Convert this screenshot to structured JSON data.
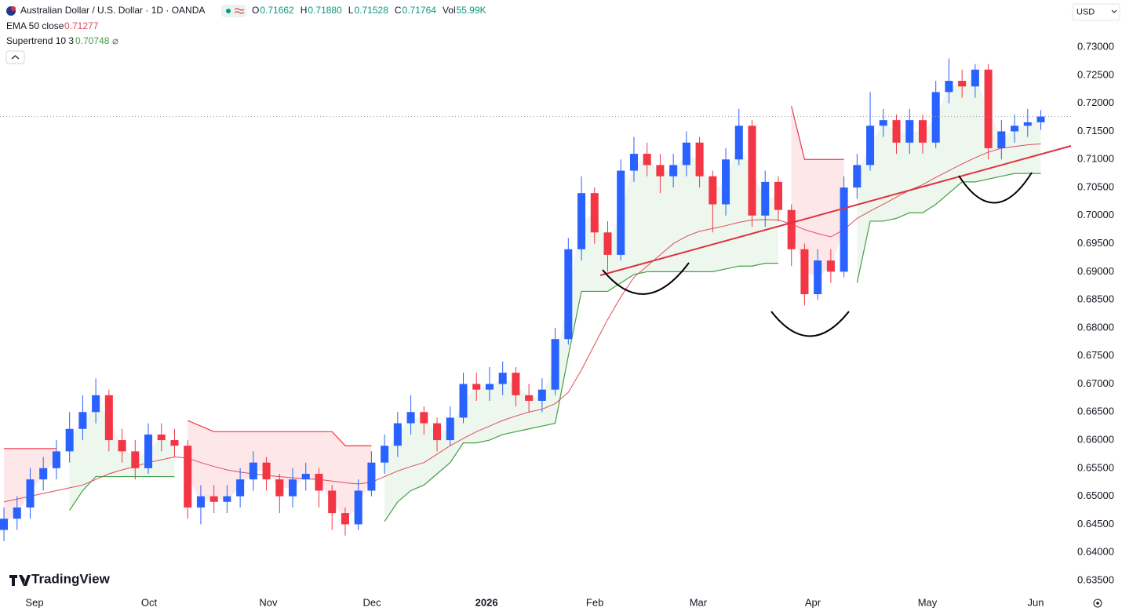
{
  "chart_data": {
    "type": "candlestick",
    "title": "Australian Dollar / U.S. Dollar · 1D · OANDA",
    "legend_values": [
      {
        "label": "O",
        "value": "0.71662"
      },
      {
        "label": "H",
        "value": "0.71880"
      },
      {
        "label": "L",
        "value": "0.71528"
      },
      {
        "label": "C",
        "value": "0.71764"
      },
      {
        "label": "Vol",
        "value": "55.99K"
      }
    ],
    "currency": "USD",
    "brand": "TradingView",
    "up_color": "#2962ff",
    "down_color": "#f23645",
    "open": [
      0.644,
      0.646,
      0.648,
      0.653,
      0.655,
      0.658,
      0.662,
      0.665,
      0.668,
      0.66,
      0.658,
      0.655,
      0.661,
      0.66,
      0.659,
      0.648,
      0.65,
      0.649,
      0.65,
      0.653,
      0.656,
      0.653,
      0.65,
      0.653,
      0.654,
      0.651,
      0.647,
      0.645,
      0.651,
      0.656,
      0.659,
      0.663,
      0.665,
      0.663,
      0.66,
      0.664,
      0.67,
      0.669,
      0.67,
      0.672,
      0.668,
      0.667,
      0.669,
      0.678,
      0.694,
      0.704,
      0.697,
      0.693,
      0.708,
      0.711,
      0.709,
      0.707,
      0.709,
      0.713,
      0.707,
      0.702,
      0.71,
      0.716,
      0.7,
      0.706,
      0.701,
      0.694,
      0.686,
      0.692,
      0.69,
      0.705,
      0.709,
      0.716,
      0.717,
      0.713,
      0.717,
      0.713,
      0.722,
      0.724,
      0.723,
      0.726,
      0.712,
      0.715,
      0.716,
      0.71662
    ],
    "high": [
      0.648,
      0.65,
      0.655,
      0.657,
      0.66,
      0.665,
      0.668,
      0.671,
      0.669,
      0.662,
      0.66,
      0.663,
      0.663,
      0.662,
      0.66,
      0.652,
      0.652,
      0.652,
      0.655,
      0.658,
      0.657,
      0.654,
      0.655,
      0.656,
      0.655,
      0.652,
      0.648,
      0.653,
      0.658,
      0.661,
      0.665,
      0.668,
      0.666,
      0.664,
      0.666,
      0.672,
      0.672,
      0.673,
      0.674,
      0.673,
      0.67,
      0.671,
      0.68,
      0.696,
      0.707,
      0.705,
      0.699,
      0.71,
      0.714,
      0.713,
      0.711,
      0.711,
      0.715,
      0.714,
      0.708,
      0.712,
      0.719,
      0.717,
      0.708,
      0.707,
      0.702,
      0.695,
      0.694,
      0.694,
      0.707,
      0.711,
      0.722,
      0.719,
      0.718,
      0.719,
      0.718,
      0.724,
      0.728,
      0.726,
      0.727,
      0.727,
      0.717,
      0.718,
      0.719,
      0.7188
    ],
    "low": [
      0.642,
      0.644,
      0.646,
      0.651,
      0.653,
      0.656,
      0.66,
      0.663,
      0.658,
      0.656,
      0.653,
      0.654,
      0.658,
      0.657,
      0.646,
      0.645,
      0.647,
      0.647,
      0.648,
      0.651,
      0.651,
      0.647,
      0.648,
      0.651,
      0.648,
      0.644,
      0.643,
      0.644,
      0.65,
      0.654,
      0.657,
      0.661,
      0.661,
      0.658,
      0.659,
      0.663,
      0.667,
      0.667,
      0.668,
      0.666,
      0.665,
      0.665,
      0.668,
      0.677,
      0.692,
      0.695,
      0.69,
      0.692,
      0.706,
      0.707,
      0.704,
      0.705,
      0.707,
      0.705,
      0.697,
      0.7,
      0.709,
      0.698,
      0.698,
      0.699,
      0.691,
      0.684,
      0.685,
      0.688,
      0.689,
      0.703,
      0.708,
      0.714,
      0.711,
      0.711,
      0.711,
      0.712,
      0.72,
      0.721,
      0.721,
      0.71,
      0.71,
      0.713,
      0.714,
      0.71528
    ],
    "close": [
      0.646,
      0.648,
      0.653,
      0.655,
      0.658,
      0.662,
      0.665,
      0.668,
      0.66,
      0.658,
      0.655,
      0.661,
      0.66,
      0.659,
      0.648,
      0.65,
      0.649,
      0.65,
      0.653,
      0.656,
      0.653,
      0.65,
      0.653,
      0.654,
      0.651,
      0.647,
      0.645,
      0.651,
      0.656,
      0.659,
      0.663,
      0.665,
      0.663,
      0.66,
      0.664,
      0.67,
      0.669,
      0.67,
      0.672,
      0.668,
      0.667,
      0.669,
      0.678,
      0.694,
      0.704,
      0.697,
      0.693,
      0.708,
      0.711,
      0.709,
      0.707,
      0.709,
      0.713,
      0.707,
      0.702,
      0.71,
      0.716,
      0.7,
      0.706,
      0.701,
      0.694,
      0.686,
      0.692,
      0.69,
      0.705,
      0.709,
      0.716,
      0.717,
      0.713,
      0.717,
      0.713,
      0.722,
      0.724,
      0.723,
      0.726,
      0.712,
      0.715,
      0.716,
      0.71662,
      0.71764
    ],
    "indicators": [
      {
        "name": "EMA 50 close",
        "color": "#e04b5c",
        "values": [
          0.649,
          0.6495,
          0.65,
          0.6505,
          0.651,
          0.6515,
          0.652,
          0.653,
          0.654,
          0.6547,
          0.6553,
          0.656,
          0.6565,
          0.657,
          0.6568,
          0.656,
          0.6553,
          0.6547,
          0.6543,
          0.654,
          0.6537,
          0.6535,
          0.6533,
          0.6531,
          0.653,
          0.6527,
          0.6524,
          0.6522,
          0.6525,
          0.6535,
          0.6545,
          0.6553,
          0.656,
          0.6575,
          0.659,
          0.6603,
          0.6615,
          0.6625,
          0.6635,
          0.6643,
          0.665,
          0.6655,
          0.6665,
          0.6685,
          0.6725,
          0.677,
          0.6815,
          0.6855,
          0.689,
          0.691,
          0.693,
          0.695,
          0.6963,
          0.6972,
          0.6977,
          0.6982,
          0.6988,
          0.6992,
          0.6993,
          0.6992,
          0.6985,
          0.6975,
          0.6968,
          0.6962,
          0.6975,
          0.6995,
          0.7008,
          0.702,
          0.7033,
          0.7045,
          0.7055,
          0.7068,
          0.708,
          0.7092,
          0.7103,
          0.7113,
          0.712,
          0.7123,
          0.7126,
          0.71277
        ]
      },
      {
        "name": "Supertrend 10 3",
        "up_color": "#43a047",
        "down_color": "#f23645",
        "up": [
          null,
          null,
          null,
          null,
          null,
          0.6475,
          0.651,
          0.6535,
          0.6535,
          0.6535,
          0.6535,
          0.6535,
          0.6535,
          0.6535,
          null,
          null,
          null,
          null,
          null,
          null,
          null,
          null,
          null,
          null,
          null,
          null,
          null,
          null,
          null,
          0.6455,
          0.649,
          0.651,
          0.652,
          0.654,
          0.656,
          0.6595,
          0.6595,
          0.66,
          0.661,
          0.6615,
          0.662,
          0.6625,
          0.663,
          0.675,
          0.6865,
          0.6865,
          0.6865,
          0.688,
          0.6895,
          0.69,
          0.69,
          0.69,
          0.69,
          0.69,
          0.69,
          0.6905,
          0.691,
          0.691,
          0.6915,
          0.6915,
          null,
          null,
          null,
          null,
          null,
          0.688,
          0.699,
          0.699,
          0.6995,
          0.7005,
          0.7005,
          0.702,
          0.704,
          0.706,
          0.706,
          0.7065,
          0.707,
          0.7075,
          0.7075,
          0.70748
        ],
        "down": [
          0.6585,
          0.6585,
          0.6585,
          0.6585,
          0.6585,
          null,
          null,
          null,
          null,
          null,
          null,
          null,
          null,
          null,
          0.6635,
          0.6625,
          0.6615,
          0.6615,
          0.6615,
          0.6615,
          0.6615,
          0.6615,
          0.6615,
          0.6615,
          0.6615,
          0.6615,
          0.659,
          0.659,
          0.659,
          null,
          null,
          null,
          null,
          null,
          null,
          null,
          null,
          null,
          null,
          null,
          null,
          null,
          null,
          null,
          null,
          null,
          null,
          null,
          null,
          null,
          null,
          null,
          null,
          null,
          null,
          null,
          null,
          null,
          null,
          null,
          0.7195,
          0.71,
          0.71,
          0.71,
          0.71,
          null,
          null,
          null,
          null,
          null,
          null,
          null,
          null,
          null,
          null,
          null,
          null,
          null,
          null,
          null
        ]
      }
    ],
    "xlim": [
      -0.3,
      81.3
    ],
    "xticks": [
      {
        "value": 2.33,
        "label": "Sep"
      },
      {
        "value": 11.06,
        "label": "Oct"
      },
      {
        "value": 20.14,
        "label": "Nov"
      },
      {
        "value": 28.04,
        "label": "Dec"
      },
      {
        "value": 36.77,
        "label": "2026",
        "bold": true
      },
      {
        "value": 45.02,
        "label": "Feb"
      },
      {
        "value": 52.9,
        "label": "Mar"
      },
      {
        "value": 61.63,
        "label": "Apr"
      },
      {
        "value": 70.36,
        "label": "May"
      },
      {
        "value": 78.61,
        "label": "Jun"
      }
    ],
    "ylim": [
      0.6329,
      0.7384
    ],
    "yticks": [
      {
        "value": 0.635,
        "label": "0.63500"
      },
      {
        "value": 0.64,
        "label": "0.64000"
      },
      {
        "value": 0.645,
        "label": "0.64500"
      },
      {
        "value": 0.65,
        "label": "0.65000"
      },
      {
        "value": 0.655,
        "label": "0.65500"
      },
      {
        "value": 0.66,
        "label": "0.66000"
      },
      {
        "value": 0.665,
        "label": "0.66500"
      },
      {
        "value": 0.67,
        "label": "0.67000"
      },
      {
        "value": 0.675,
        "label": "0.67500"
      },
      {
        "value": 0.68,
        "label": "0.68000"
      },
      {
        "value": 0.685,
        "label": "0.68500"
      },
      {
        "value": 0.69,
        "label": "0.69000"
      },
      {
        "value": 0.695,
        "label": "0.69500"
      },
      {
        "value": 0.7,
        "label": "0.70000"
      },
      {
        "value": 0.705,
        "label": "0.70500"
      },
      {
        "value": 0.71,
        "label": "0.71000"
      },
      {
        "value": 0.715,
        "label": "0.71500"
      },
      {
        "value": 0.72,
        "label": "0.72000"
      },
      {
        "value": 0.725,
        "label": "0.72500"
      },
      {
        "value": 0.73,
        "label": "0.73000"
      }
    ],
    "grid": false
  }
}
